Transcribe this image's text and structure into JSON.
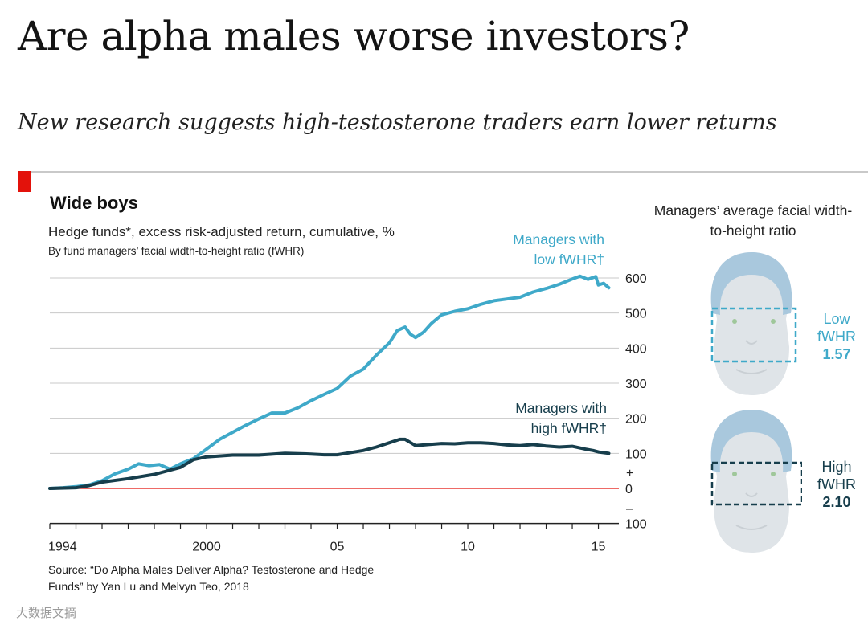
{
  "headline": "Are alpha males worse investors?",
  "subheadline": "New research suggests high-testosterone traders earn lower returns",
  "colors": {
    "accent_red": "#e3120b",
    "low_fwhr": "#3fa9c9",
    "high_fwhr": "#173e4c",
    "face": "#dfe4e8",
    "hair": "#a9c8dd"
  },
  "panel": {
    "title": "Managers’ average facial width-to-height ratio",
    "faces": [
      {
        "icon": "face-wide-box-icon",
        "label": "Low fWHR",
        "value": "1.57"
      },
      {
        "icon": "face-narrow-box-icon",
        "label": "High fWHR",
        "value": "2.10"
      }
    ]
  },
  "watermark": "大数据文摘",
  "chart_data": {
    "type": "line",
    "title": "Wide boys",
    "subtitle": "Hedge funds*, excess risk-adjusted return, cumulative, %",
    "subtitle2": "By fund managers’ facial width-to-height ratio (fWHR)",
    "source": "Source: “Do Alpha Males Deliver Alpha? Testosterone and Hedge Funds” by Yan Lu and Melvyn Teo, 2018",
    "x_ticks": [
      1994,
      1995,
      1996,
      1997,
      1998,
      1999,
      2000,
      2001,
      2002,
      2003,
      2004,
      2005,
      2006,
      2007,
      2008,
      2009,
      2010,
      2011,
      2012,
      2013,
      2014,
      2015
    ],
    "x_tick_labels": [
      {
        "x": 1994,
        "label": "1994"
      },
      {
        "x": 2000,
        "label": "2000"
      },
      {
        "x": 2005,
        "label": "05"
      },
      {
        "x": 2010,
        "label": "10"
      },
      {
        "x": 2015,
        "label": "15"
      }
    ],
    "xlim": [
      1994,
      2015.5
    ],
    "ylim": [
      -100,
      600
    ],
    "y_ticks": [
      600,
      500,
      400,
      300,
      200,
      100,
      0,
      -100
    ],
    "y_tick_labels": [
      "600",
      "500",
      "400",
      "300",
      "200",
      "100",
      "0",
      "100"
    ],
    "y_sign_labels": [
      "+",
      "–"
    ],
    "axis_position": "right",
    "grid": true,
    "series": [
      {
        "name": "Managers with low fWHR†",
        "color": "#3fa9c9",
        "points": [
          [
            1994.0,
            0
          ],
          [
            1994.5,
            2
          ],
          [
            1995.0,
            5
          ],
          [
            1995.5,
            10
          ],
          [
            1996.0,
            22
          ],
          [
            1996.5,
            42
          ],
          [
            1997.0,
            55
          ],
          [
            1997.4,
            70
          ],
          [
            1997.8,
            65
          ],
          [
            1998.2,
            68
          ],
          [
            1998.6,
            55
          ],
          [
            1999.0,
            70
          ],
          [
            1999.5,
            85
          ],
          [
            2000.0,
            112
          ],
          [
            2000.5,
            140
          ],
          [
            2001.0,
            160
          ],
          [
            2001.5,
            180
          ],
          [
            2002.0,
            198
          ],
          [
            2002.5,
            215
          ],
          [
            2003.0,
            215
          ],
          [
            2003.5,
            230
          ],
          [
            2004.0,
            250
          ],
          [
            2004.5,
            268
          ],
          [
            2005.0,
            285
          ],
          [
            2005.5,
            320
          ],
          [
            2006.0,
            340
          ],
          [
            2006.5,
            380
          ],
          [
            2007.0,
            415
          ],
          [
            2007.3,
            450
          ],
          [
            2007.6,
            460
          ],
          [
            2007.8,
            440
          ],
          [
            2008.0,
            430
          ],
          [
            2008.3,
            445
          ],
          [
            2008.6,
            470
          ],
          [
            2009.0,
            495
          ],
          [
            2009.5,
            505
          ],
          [
            2010.0,
            512
          ],
          [
            2010.5,
            525
          ],
          [
            2011.0,
            535
          ],
          [
            2011.5,
            540
          ],
          [
            2012.0,
            545
          ],
          [
            2012.5,
            560
          ],
          [
            2013.0,
            570
          ],
          [
            2013.5,
            582
          ],
          [
            2014.0,
            597
          ],
          [
            2014.3,
            605
          ],
          [
            2014.6,
            596
          ],
          [
            2014.9,
            604
          ],
          [
            2015.0,
            580
          ],
          [
            2015.2,
            585
          ],
          [
            2015.4,
            572
          ]
        ]
      },
      {
        "name": "Managers with high fWHR†",
        "color": "#173e4c",
        "points": [
          [
            1994.0,
            0
          ],
          [
            1995.0,
            2
          ],
          [
            1995.5,
            8
          ],
          [
            1996.0,
            18
          ],
          [
            1997.0,
            28
          ],
          [
            1998.0,
            40
          ],
          [
            1999.0,
            60
          ],
          [
            1999.5,
            82
          ],
          [
            2000.0,
            90
          ],
          [
            2001.0,
            95
          ],
          [
            2002.0,
            95
          ],
          [
            2003.0,
            100
          ],
          [
            2004.0,
            98
          ],
          [
            2004.5,
            96
          ],
          [
            2005.0,
            96
          ],
          [
            2006.0,
            108
          ],
          [
            2006.5,
            118
          ],
          [
            2007.0,
            130
          ],
          [
            2007.4,
            140
          ],
          [
            2007.6,
            140
          ],
          [
            2008.0,
            122
          ],
          [
            2008.5,
            125
          ],
          [
            2009.0,
            128
          ],
          [
            2009.5,
            127
          ],
          [
            2010.0,
            130
          ],
          [
            2010.5,
            130
          ],
          [
            2011.0,
            128
          ],
          [
            2011.5,
            124
          ],
          [
            2012.0,
            122
          ],
          [
            2012.5,
            125
          ],
          [
            2013.0,
            121
          ],
          [
            2013.5,
            118
          ],
          [
            2014.0,
            120
          ],
          [
            2014.5,
            112
          ],
          [
            2014.8,
            108
          ],
          [
            2015.0,
            104
          ],
          [
            2015.4,
            100
          ]
        ]
      }
    ],
    "series_labels": [
      {
        "line1": "Managers with",
        "line2": "low fWHR†"
      },
      {
        "line1": "Managers with",
        "line2": "high fWHR†"
      }
    ]
  }
}
